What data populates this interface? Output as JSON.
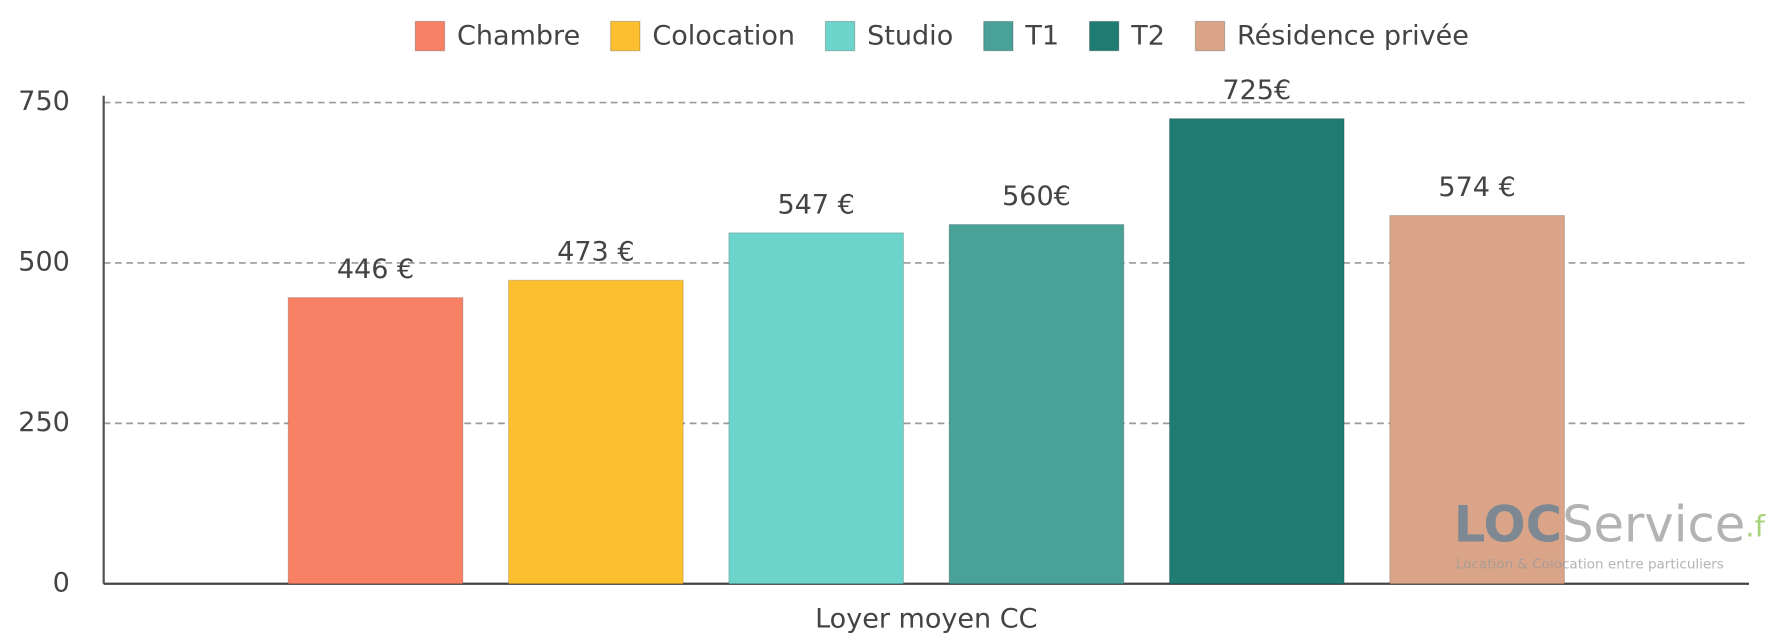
{
  "chart_data": {
    "type": "bar",
    "categories": [
      "Loyer moyen CC"
    ],
    "series": [
      {
        "name": "Chambre",
        "color": "#f88165",
        "values": [
          446
        ],
        "value_labels": [
          "446 €"
        ]
      },
      {
        "name": "Colocation",
        "color": "#fcc02f",
        "values": [
          473
        ],
        "value_labels": [
          "473 €"
        ]
      },
      {
        "name": "Studio",
        "color": "#6cd4cb",
        "values": [
          547
        ],
        "value_labels": [
          "547 €"
        ]
      },
      {
        "name": "T1",
        "color": "#4aa198",
        "values": [
          560
        ],
        "value_labels": [
          "560€"
        ]
      },
      {
        "name": "T2",
        "color": "#1f7c72",
        "values": [
          725
        ],
        "value_labels": [
          "725€"
        ]
      },
      {
        "name": "Résidence privée",
        "color": "#d9a488",
        "values": [
          574
        ],
        "value_labels": [
          "574 €"
        ]
      }
    ],
    "ylim": [
      0,
      750
    ],
    "yticks": [
      0,
      250,
      500,
      750
    ],
    "grid": true,
    "legend": "top"
  },
  "watermark": {
    "brand_loc": "LOC",
    "brand_service": "Service",
    "brand_tld": ".fr",
    "tagline": "Location & Colocation entre particuliers"
  }
}
